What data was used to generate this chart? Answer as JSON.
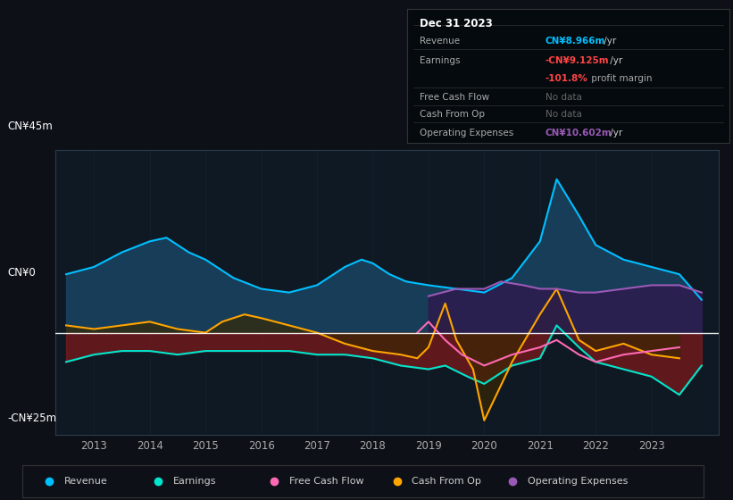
{
  "bg_color": "#0d1117",
  "plot_bg_color": "#0f1923",
  "ylim": [
    -28,
    50
  ],
  "x_ticks": [
    2013,
    2014,
    2015,
    2016,
    2017,
    2018,
    2019,
    2020,
    2021,
    2022,
    2023
  ],
  "ylabel_top": "CN¥45m",
  "ylabel_zero": "CN¥0",
  "ylabel_bottom": "-CN¥25m",
  "revenue_x": [
    2012.5,
    2013.0,
    2013.5,
    2014.0,
    2014.3,
    2014.7,
    2015.0,
    2015.5,
    2016.0,
    2016.5,
    2017.0,
    2017.5,
    2017.8,
    2018.0,
    2018.3,
    2018.6,
    2019.0,
    2019.5,
    2020.0,
    2020.5,
    2021.0,
    2021.3,
    2021.7,
    2022.0,
    2022.5,
    2023.0,
    2023.5,
    2023.9
  ],
  "revenue_y": [
    16,
    18,
    22,
    25,
    26,
    22,
    20,
    15,
    12,
    11,
    13,
    18,
    20,
    19,
    16,
    14,
    13,
    12,
    11,
    15,
    25,
    42,
    32,
    24,
    20,
    18,
    16,
    9
  ],
  "revenue_color": "#00bfff",
  "revenue_fill": "#1a4a6b",
  "earnings_x": [
    2012.5,
    2013.0,
    2013.5,
    2014.0,
    2014.5,
    2015.0,
    2015.5,
    2016.0,
    2016.5,
    2017.0,
    2017.5,
    2018.0,
    2018.5,
    2019.0,
    2019.3,
    2019.7,
    2020.0,
    2020.5,
    2021.0,
    2021.3,
    2021.7,
    2022.0,
    2022.5,
    2023.0,
    2023.5,
    2023.9
  ],
  "earnings_y": [
    -8,
    -6,
    -5,
    -5,
    -6,
    -5,
    -5,
    -5,
    -5,
    -6,
    -6,
    -7,
    -9,
    -10,
    -9,
    -12,
    -14,
    -9,
    -7,
    2,
    -4,
    -8,
    -10,
    -12,
    -17,
    -9
  ],
  "earnings_color": "#00e5cc",
  "earnings_fill": "#8b1a1a",
  "fcf_x": [
    2018.8,
    2019.0,
    2019.3,
    2019.6,
    2020.0,
    2020.5,
    2021.0,
    2021.3,
    2021.7,
    2022.0,
    2022.5,
    2023.0,
    2023.5
  ],
  "fcf_y": [
    0,
    3,
    -2,
    -6,
    -9,
    -6,
    -4,
    -2,
    -6,
    -8,
    -6,
    -5,
    -4
  ],
  "fcf_color": "#ff69b4",
  "cop_x": [
    2012.5,
    2013.0,
    2013.5,
    2014.0,
    2014.5,
    2015.0,
    2015.3,
    2015.7,
    2016.0,
    2016.5,
    2017.0,
    2017.5,
    2018.0,
    2018.5,
    2018.8,
    2019.0,
    2019.3,
    2019.5,
    2019.8,
    2020.0,
    2020.5,
    2021.0,
    2021.3,
    2021.7,
    2022.0,
    2022.5,
    2023.0,
    2023.5
  ],
  "cop_y": [
    2,
    1,
    2,
    3,
    1,
    0,
    3,
    5,
    4,
    2,
    0,
    -3,
    -5,
    -6,
    -7,
    -4,
    8,
    -2,
    -10,
    -24,
    -8,
    5,
    12,
    -2,
    -5,
    -3,
    -6,
    -7
  ],
  "cop_color": "#ffa500",
  "cop_fill": "#3a2800",
  "opex_x": [
    2019.0,
    2019.5,
    2020.0,
    2020.3,
    2020.7,
    2021.0,
    2021.3,
    2021.7,
    2022.0,
    2022.5,
    2023.0,
    2023.5,
    2023.9
  ],
  "opex_y": [
    10,
    12,
    12,
    14,
    13,
    12,
    12,
    11,
    11,
    12,
    13,
    13,
    11
  ],
  "opex_color": "#9b59b6",
  "opex_fill": "#2d1b4e",
  "legend": [
    {
      "label": "Revenue",
      "color": "#00bfff"
    },
    {
      "label": "Earnings",
      "color": "#00e5cc"
    },
    {
      "label": "Free Cash Flow",
      "color": "#ff69b4"
    },
    {
      "label": "Cash From Op",
      "color": "#ffa500"
    },
    {
      "label": "Operating Expenses",
      "color": "#9b59b6"
    }
  ],
  "info_date": "Dec 31 2023",
  "info_rows": [
    {
      "label": "Revenue",
      "val": "CN¥8.966m",
      "suffix": " /yr",
      "val_color": "#00bfff",
      "extra": null
    },
    {
      "label": "Earnings",
      "val": "-CN¥9.125m",
      "suffix": " /yr",
      "val_color": "#ff4444",
      "extra": null
    },
    {
      "label": "",
      "val": "-101.8%",
      "suffix": " profit margin",
      "val_color": "#ff4444",
      "extra": "profit margin"
    },
    {
      "label": "Free Cash Flow",
      "val": "No data",
      "suffix": "",
      "val_color": "#666666",
      "extra": null
    },
    {
      "label": "Cash From Op",
      "val": "No data",
      "suffix": "",
      "val_color": "#666666",
      "extra": null
    },
    {
      "label": "Operating Expenses",
      "val": "CN¥10.602m",
      "suffix": " /yr",
      "val_color": "#9b59b6",
      "extra": null
    }
  ]
}
